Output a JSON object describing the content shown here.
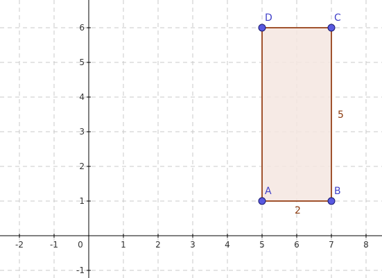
{
  "axes": {
    "x_ticks": [
      "-2",
      "-1",
      "0",
      "1",
      "2",
      "3",
      "4",
      "5",
      "6",
      "7",
      "8"
    ],
    "y_ticks": [
      "-1",
      "1",
      "2",
      "3",
      "4",
      "5",
      "6"
    ],
    "x_range": [
      -2.5,
      8.5
    ],
    "y_range": [
      -1.2,
      6.8
    ],
    "grid": true,
    "grid_style": "dashed"
  },
  "polygon": {
    "fill_color": "#f5e6e1",
    "stroke_color": "#a0522d",
    "vertices": [
      {
        "label": "A",
        "x": 5,
        "y": 1
      },
      {
        "label": "B",
        "x": 7,
        "y": 1
      },
      {
        "label": "C",
        "x": 7,
        "y": 6
      },
      {
        "label": "D",
        "x": 5,
        "y": 6
      }
    ],
    "side_labels": [
      {
        "text": "2",
        "side": "AB"
      },
      {
        "text": "5",
        "side": "BC"
      }
    ]
  },
  "colors": {
    "point_fill": "#5858e0",
    "point_stroke": "#1a1a6e",
    "vertex_label": "#4040c8",
    "side_label": "#8b3a0e",
    "grid": "#c8c8c8",
    "axis": "#000000"
  }
}
